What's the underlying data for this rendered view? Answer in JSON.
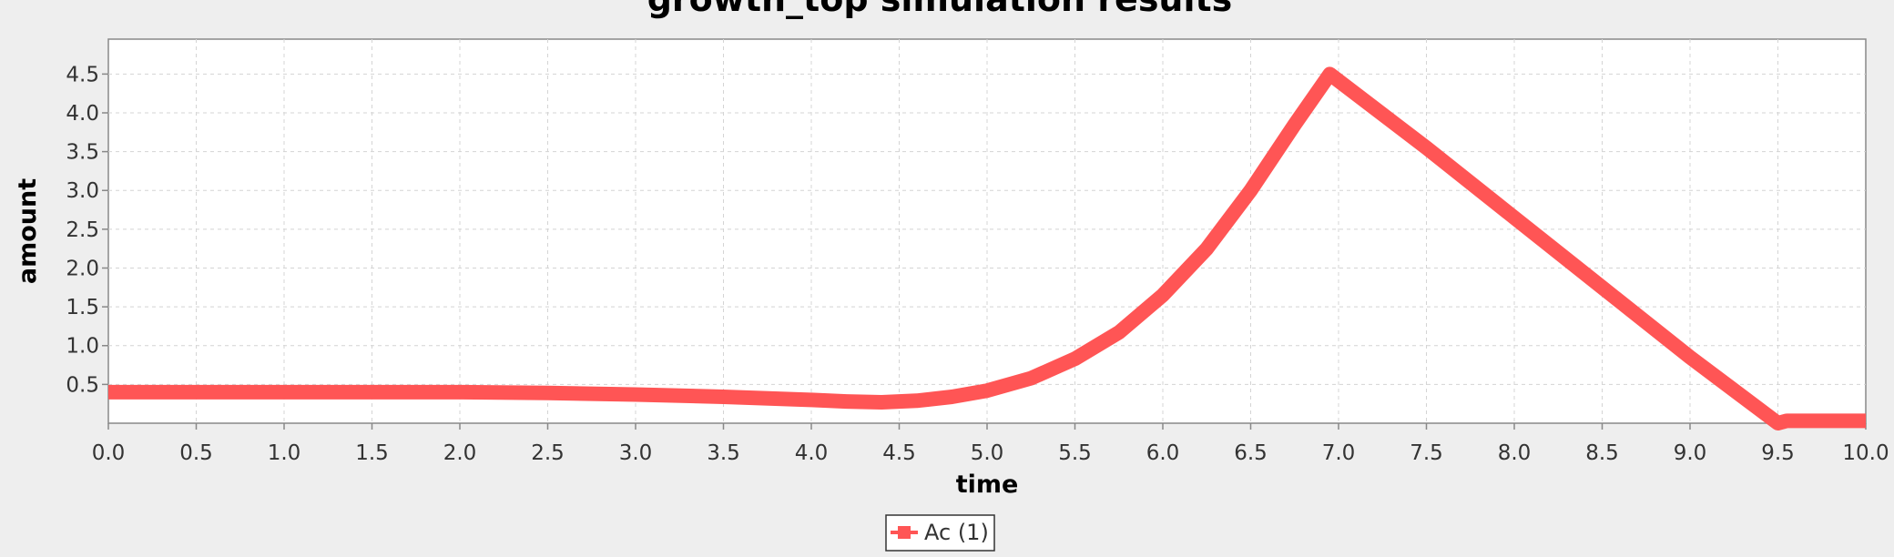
{
  "chart_data": {
    "type": "line",
    "title": "growth_top simulation results",
    "xlabel": "time",
    "ylabel": "amount",
    "xlim": [
      0,
      10
    ],
    "ylim": [
      0,
      4.95
    ],
    "x_ticks": [
      "0.0",
      "0.5",
      "1.0",
      "1.5",
      "2.0",
      "2.5",
      "3.0",
      "3.5",
      "4.0",
      "4.5",
      "5.0",
      "5.5",
      "6.0",
      "6.5",
      "7.0",
      "7.5",
      "8.0",
      "8.5",
      "9.0",
      "9.5",
      "10.0"
    ],
    "y_ticks": [
      "0.5",
      "1.0",
      "1.5",
      "2.0",
      "2.5",
      "3.0",
      "3.5",
      "4.0",
      "4.5"
    ],
    "grid": true,
    "legend_position": "bottom-center",
    "series": [
      {
        "name": "Ac (1)",
        "color": "#ff5555",
        "x": [
          0.0,
          0.5,
          1.0,
          1.5,
          2.0,
          2.5,
          3.0,
          3.5,
          4.0,
          4.2,
          4.4,
          4.6,
          4.8,
          5.0,
          5.25,
          5.5,
          5.75,
          6.0,
          6.25,
          6.5,
          6.75,
          6.95,
          7.5,
          8.0,
          8.5,
          9.0,
          9.5,
          9.55,
          10.0
        ],
        "y": [
          0.4,
          0.4,
          0.4,
          0.4,
          0.4,
          0.39,
          0.37,
          0.34,
          0.3,
          0.28,
          0.27,
          0.29,
          0.34,
          0.42,
          0.58,
          0.83,
          1.17,
          1.65,
          2.25,
          3.0,
          3.85,
          4.5,
          3.55,
          2.65,
          1.75,
          0.85,
          0.0,
          0.03,
          0.03
        ]
      }
    ]
  }
}
